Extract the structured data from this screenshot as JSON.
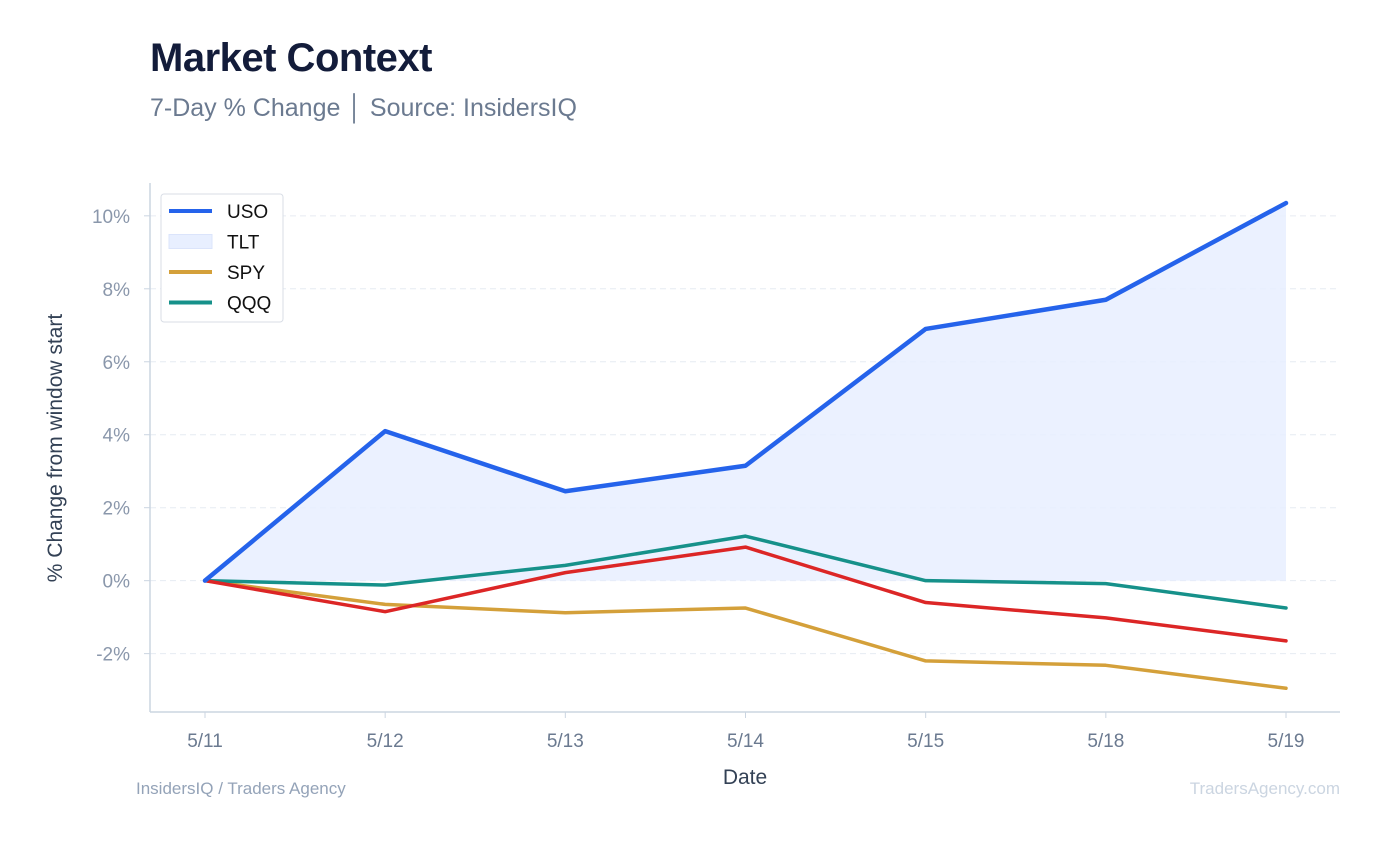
{
  "header": {
    "title": "Market Context",
    "subtitle": "7-Day % Change │ Source: InsidersIQ"
  },
  "footer": {
    "left": "InsidersIQ / Traders Agency",
    "right": "TradersAgency.com"
  },
  "chart_data": {
    "type": "line",
    "xlabel": "Date",
    "ylabel": "% Change from window start",
    "categories": [
      "5/11",
      "5/12",
      "5/13",
      "5/14",
      "5/15",
      "5/18",
      "5/19"
    ],
    "ylim": [
      -3.6,
      10.9
    ],
    "yticks": [
      -2,
      0,
      2,
      4,
      6,
      8,
      10
    ],
    "ytick_labels": [
      "-2%",
      "0%",
      "2%",
      "4%",
      "6%",
      "8%",
      "10%"
    ],
    "grid": "horizontal dashed",
    "legend_position": "top-left",
    "legend": [
      {
        "label": "USO",
        "style": "line",
        "color": "#2563eb"
      },
      {
        "label": "TLT",
        "style": "area",
        "color": "#e8efff"
      },
      {
        "label": "SPY",
        "style": "line",
        "color": "#d4a03a"
      },
      {
        "label": "QQQ",
        "style": "line",
        "color": "#16918a"
      }
    ],
    "series": [
      {
        "name": "USO",
        "color": "#2563eb",
        "fill": "#e8efff",
        "values": [
          0.0,
          4.1,
          2.45,
          3.15,
          6.9,
          7.7,
          10.35
        ]
      },
      {
        "name": "SPY",
        "color": "#d4a03a",
        "values": [
          0.0,
          -0.65,
          -0.88,
          -0.75,
          -2.2,
          -2.32,
          -2.95
        ]
      },
      {
        "name": "QQQ",
        "color": "#16918a",
        "values": [
          0.0,
          -0.12,
          0.42,
          1.22,
          0.0,
          -0.08,
          -0.75
        ]
      },
      {
        "color": "#dc2626",
        "values": [
          0.0,
          -0.85,
          0.22,
          0.92,
          -0.6,
          -1.02,
          -1.65
        ]
      }
    ]
  }
}
